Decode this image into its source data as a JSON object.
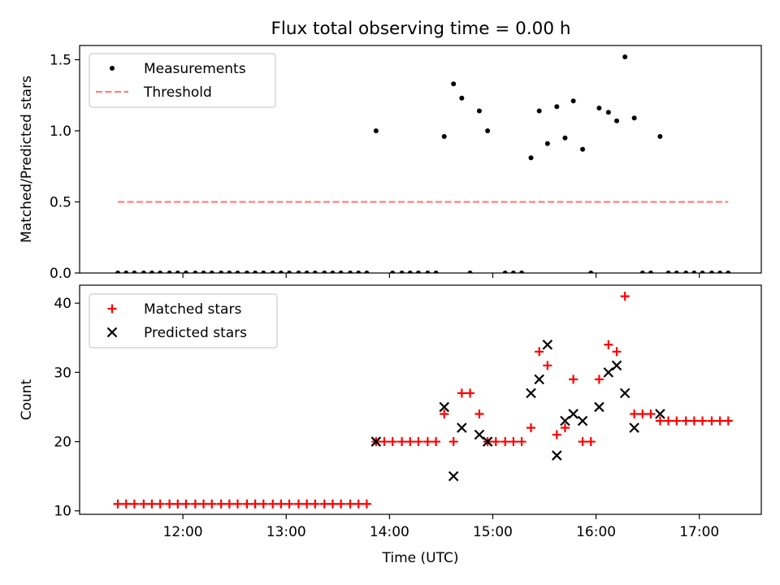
{
  "title": "Flux total observing time = 0.00 h",
  "chart_data": [
    {
      "type": "scatter",
      "ylabel": "Matched/Predicted stars",
      "xlim_hours": [
        11.0,
        17.6
      ],
      "ylim": [
        0,
        1.6
      ],
      "yticks": [
        0.0,
        0.5,
        1.0,
        1.5
      ],
      "ytick_labels": [
        "0.0",
        "0.5",
        "1.0",
        "1.5"
      ],
      "xtick_labels_shown": false,
      "legend_position": "upper-left",
      "series": [
        {
          "name": "Measurements",
          "marker": "dot",
          "color": "#000000",
          "points": [
            [
              11.37,
              0
            ],
            [
              11.45,
              0
            ],
            [
              11.53,
              0
            ],
            [
              11.62,
              0
            ],
            [
              11.7,
              0
            ],
            [
              11.78,
              0
            ],
            [
              11.87,
              0
            ],
            [
              11.95,
              0
            ],
            [
              12.03,
              0
            ],
            [
              12.12,
              0
            ],
            [
              12.2,
              0
            ],
            [
              12.28,
              0
            ],
            [
              12.37,
              0
            ],
            [
              12.45,
              0
            ],
            [
              12.53,
              0
            ],
            [
              12.62,
              0
            ],
            [
              12.7,
              0
            ],
            [
              12.78,
              0
            ],
            [
              12.87,
              0
            ],
            [
              12.95,
              0
            ],
            [
              13.03,
              0
            ],
            [
              13.12,
              0
            ],
            [
              13.2,
              0
            ],
            [
              13.28,
              0
            ],
            [
              13.37,
              0
            ],
            [
              13.45,
              0
            ],
            [
              13.53,
              0
            ],
            [
              13.62,
              0
            ],
            [
              13.7,
              0
            ],
            [
              13.78,
              0
            ],
            [
              13.87,
              1.0
            ],
            [
              14.03,
              0
            ],
            [
              14.12,
              0
            ],
            [
              14.2,
              0
            ],
            [
              14.28,
              0
            ],
            [
              14.37,
              0
            ],
            [
              14.45,
              0
            ],
            [
              14.53,
              0.96
            ],
            [
              14.62,
              1.33
            ],
            [
              14.7,
              1.23
            ],
            [
              14.78,
              0
            ],
            [
              14.87,
              1.14
            ],
            [
              14.95,
              1.0
            ],
            [
              15.12,
              0
            ],
            [
              15.2,
              0
            ],
            [
              15.28,
              0
            ],
            [
              15.37,
              0.81
            ],
            [
              15.45,
              1.14
            ],
            [
              15.53,
              0.91
            ],
            [
              15.62,
              1.17
            ],
            [
              15.7,
              0.95
            ],
            [
              15.78,
              1.21
            ],
            [
              15.87,
              0.87
            ],
            [
              15.95,
              0
            ],
            [
              16.03,
              1.16
            ],
            [
              16.12,
              1.13
            ],
            [
              16.2,
              1.07
            ],
            [
              16.28,
              1.52
            ],
            [
              16.37,
              1.09
            ],
            [
              16.45,
              0
            ],
            [
              16.53,
              0
            ],
            [
              16.62,
              0.96
            ],
            [
              16.7,
              0
            ],
            [
              16.78,
              0
            ],
            [
              16.87,
              0
            ],
            [
              16.95,
              0
            ],
            [
              17.03,
              0
            ],
            [
              17.12,
              0
            ],
            [
              17.2,
              0
            ],
            [
              17.28,
              0
            ]
          ]
        },
        {
          "name": "Threshold",
          "marker": "dashed-line",
          "color": "#ff7f7f",
          "points": [
            [
              11.37,
              0.5
            ],
            [
              17.28,
              0.5
            ]
          ]
        }
      ]
    },
    {
      "type": "scatter",
      "xlabel": "Time (UTC)",
      "ylabel": "Count",
      "xlim_hours": [
        11.0,
        17.6
      ],
      "ylim": [
        9.5,
        42.6
      ],
      "yticks": [
        10,
        20,
        30,
        40
      ],
      "ytick_labels": [
        "10",
        "20",
        "30",
        "40"
      ],
      "xticks_hours": [
        12,
        13,
        14,
        15,
        16,
        17
      ],
      "xtick_labels": [
        "12:00",
        "13:00",
        "14:00",
        "15:00",
        "16:00",
        "17:00"
      ],
      "legend_position": "upper-left",
      "series": [
        {
          "name": "Matched stars",
          "marker": "plus",
          "color": "#ff0000",
          "points": [
            [
              11.37,
              11
            ],
            [
              11.45,
              11
            ],
            [
              11.53,
              11
            ],
            [
              11.62,
              11
            ],
            [
              11.7,
              11
            ],
            [
              11.78,
              11
            ],
            [
              11.87,
              11
            ],
            [
              11.95,
              11
            ],
            [
              12.03,
              11
            ],
            [
              12.12,
              11
            ],
            [
              12.2,
              11
            ],
            [
              12.28,
              11
            ],
            [
              12.37,
              11
            ],
            [
              12.45,
              11
            ],
            [
              12.53,
              11
            ],
            [
              12.62,
              11
            ],
            [
              12.7,
              11
            ],
            [
              12.78,
              11
            ],
            [
              12.87,
              11
            ],
            [
              12.95,
              11
            ],
            [
              13.03,
              11
            ],
            [
              13.12,
              11
            ],
            [
              13.2,
              11
            ],
            [
              13.28,
              11
            ],
            [
              13.37,
              11
            ],
            [
              13.45,
              11
            ],
            [
              13.53,
              11
            ],
            [
              13.62,
              11
            ],
            [
              13.7,
              11
            ],
            [
              13.78,
              11
            ],
            [
              13.87,
              20
            ],
            [
              13.95,
              20
            ],
            [
              14.03,
              20
            ],
            [
              14.12,
              20
            ],
            [
              14.2,
              20
            ],
            [
              14.28,
              20
            ],
            [
              14.37,
              20
            ],
            [
              14.45,
              20
            ],
            [
              14.53,
              24
            ],
            [
              14.62,
              20
            ],
            [
              14.7,
              27
            ],
            [
              14.78,
              27
            ],
            [
              14.87,
              24
            ],
            [
              14.95,
              20
            ],
            [
              15.03,
              20
            ],
            [
              15.12,
              20
            ],
            [
              15.2,
              20
            ],
            [
              15.28,
              20
            ],
            [
              15.37,
              22
            ],
            [
              15.45,
              33
            ],
            [
              15.53,
              31
            ],
            [
              15.62,
              21
            ],
            [
              15.7,
              22
            ],
            [
              15.78,
              29
            ],
            [
              15.87,
              20
            ],
            [
              15.95,
              20
            ],
            [
              16.03,
              29
            ],
            [
              16.12,
              34
            ],
            [
              16.2,
              33
            ],
            [
              16.28,
              41
            ],
            [
              16.37,
              24
            ],
            [
              16.45,
              24
            ],
            [
              16.53,
              24
            ],
            [
              16.62,
              23
            ],
            [
              16.7,
              23
            ],
            [
              16.78,
              23
            ],
            [
              16.87,
              23
            ],
            [
              16.95,
              23
            ],
            [
              17.03,
              23
            ],
            [
              17.12,
              23
            ],
            [
              17.2,
              23
            ],
            [
              17.28,
              23
            ]
          ]
        },
        {
          "name": "Predicted stars",
          "marker": "x",
          "color": "#000000",
          "points": [
            [
              13.87,
              20
            ],
            [
              14.53,
              25
            ],
            [
              14.62,
              15
            ],
            [
              14.7,
              22
            ],
            [
              14.87,
              21
            ],
            [
              14.95,
              20
            ],
            [
              15.37,
              27
            ],
            [
              15.45,
              29
            ],
            [
              15.53,
              34
            ],
            [
              15.62,
              18
            ],
            [
              15.7,
              23
            ],
            [
              15.78,
              24
            ],
            [
              15.87,
              23
            ],
            [
              16.03,
              25
            ],
            [
              16.12,
              30
            ],
            [
              16.2,
              31
            ],
            [
              16.28,
              27
            ],
            [
              16.37,
              22
            ],
            [
              16.62,
              24
            ]
          ]
        }
      ]
    }
  ]
}
